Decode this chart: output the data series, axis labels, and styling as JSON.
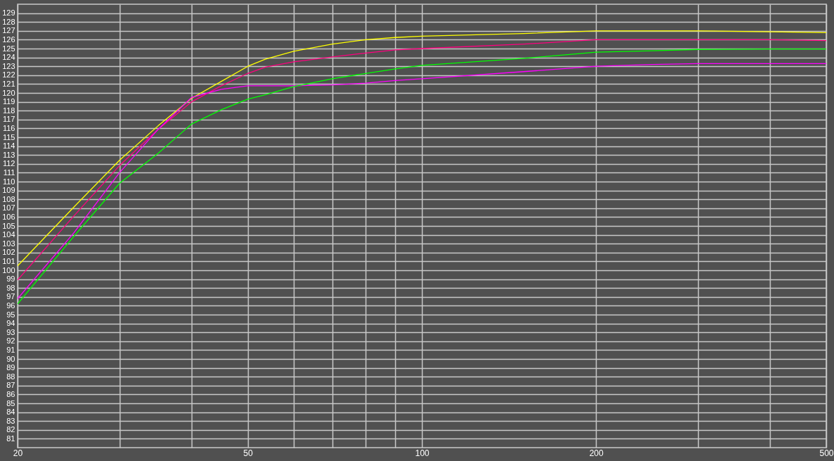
{
  "chart_data": {
    "type": "line",
    "x": [
      20,
      25,
      30,
      35,
      40,
      45,
      50,
      53.6,
      60,
      70,
      80,
      90,
      100,
      150,
      200,
      250,
      300,
      400,
      500
    ],
    "series": [
      {
        "color": "#ffff00",
        "values": [
          100.5,
          107.1,
          112.4,
          116.3,
          119.4,
          121.3,
          123.0,
          123.8,
          124.7,
          125.5,
          126.0,
          126.25,
          126.4,
          126.7,
          127.0,
          127.0,
          127.0,
          126.9,
          126.8
        ]
      },
      {
        "color": "#ff0080",
        "values": [
          98.9,
          106.1,
          111.8,
          115.9,
          119.0,
          120.8,
          122.2,
          122.9,
          123.5,
          124.05,
          124.5,
          124.85,
          125.0,
          125.5,
          126.0,
          126.0,
          126.0,
          126.0,
          125.9
        ]
      },
      {
        "color": "#ff00ff",
        "values": [
          96.8,
          104.2,
          111.0,
          115.9,
          119.5,
          120.4,
          120.8,
          120.8,
          120.8,
          120.9,
          121.1,
          121.4,
          121.6,
          122.4,
          123.0,
          123.2,
          123.3,
          123.3,
          123.3
        ]
      },
      {
        "color": "#00ff00",
        "values": [
          96.2,
          103.8,
          109.8,
          113.2,
          116.5,
          118.1,
          119.3,
          119.8,
          120.7,
          121.6,
          122.2,
          122.7,
          123.1,
          123.9,
          124.6,
          124.75,
          124.9,
          124.95,
          124.95
        ]
      }
    ],
    "log": "x",
    "xlim": [
      20,
      500
    ],
    "ylim": [
      80,
      130
    ],
    "xticks": [
      20,
      {
        "value": 30,
        "label": null
      },
      {
        "value": 40,
        "label": null
      },
      50,
      {
        "value": 60,
        "label": null
      },
      {
        "value": 70,
        "label": null
      },
      {
        "value": 80,
        "label": null
      },
      {
        "value": 90,
        "label": null
      },
      100,
      200,
      {
        "value": 300,
        "label": null
      },
      {
        "value": 400,
        "label": null
      },
      500
    ],
    "yticks": [
      81,
      82,
      83,
      84,
      85,
      86,
      87,
      88,
      89,
      90,
      91,
      92,
      93,
      94,
      95,
      96,
      97,
      98,
      99,
      100,
      101,
      102,
      103,
      104,
      105,
      106,
      107,
      108,
      109,
      110,
      111,
      112,
      113,
      114,
      115,
      116,
      117,
      118,
      119,
      120,
      121,
      122,
      123,
      124,
      125,
      126,
      127,
      128,
      129
    ],
    "grid": true,
    "legend": false,
    "marker": "none",
    "line_style": "solid"
  }
}
